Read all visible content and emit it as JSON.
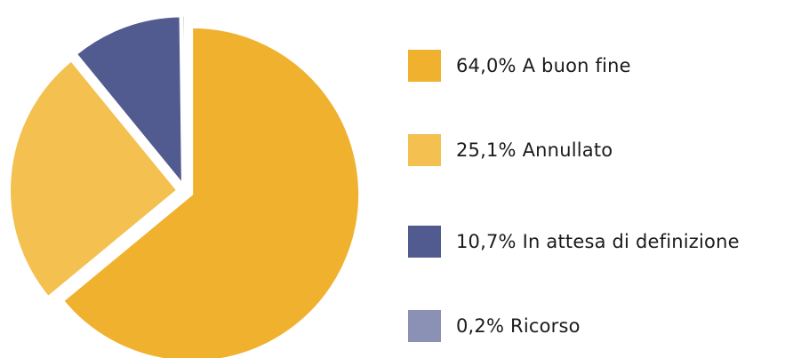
{
  "chart_data": {
    "type": "pie",
    "slices": [
      {
        "pct_label": "64,0%",
        "label": "A buon fine",
        "value": 64.0,
        "color": "#f0b12f"
      },
      {
        "pct_label": "25,1%",
        "label": "Annullato",
        "value": 25.1,
        "color": "#f4c04f"
      },
      {
        "pct_label": "10,7%",
        "label": "In attesa di definizione",
        "value": 10.7,
        "color": "#525b8f"
      },
      {
        "pct_label": "0,2%",
        "label": "Ricorso",
        "value": 0.2,
        "color": "#8b91b4"
      }
    ],
    "legend_position": "right",
    "start_angle_deg": 0,
    "direction": "clockwise",
    "exploded": true
  }
}
